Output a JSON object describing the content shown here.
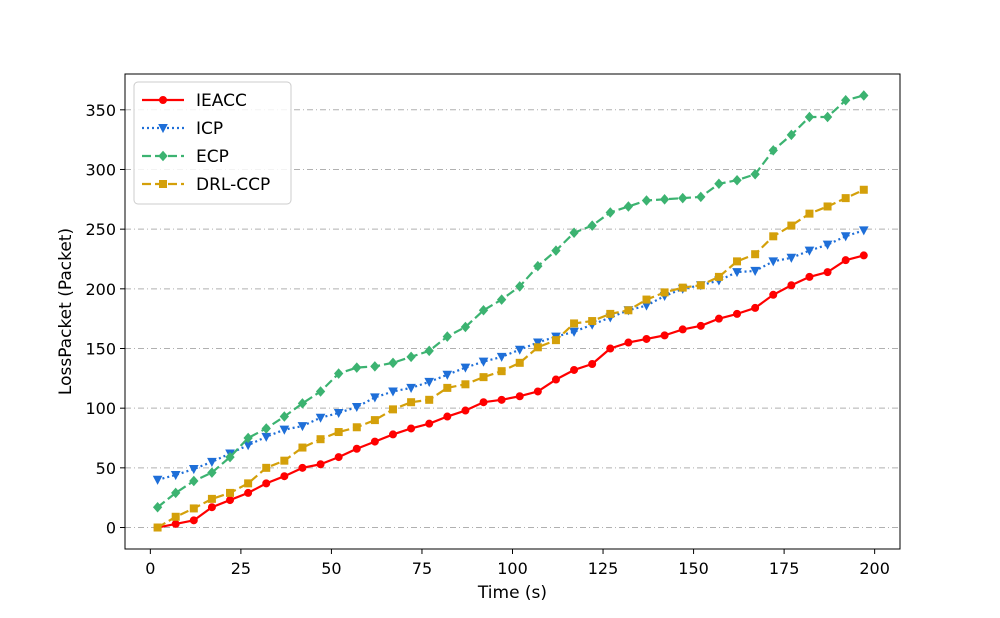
{
  "chart_data": {
    "type": "line",
    "xlabel": "Time (s)",
    "ylabel": "LossPacket (Packet)",
    "xlim": [
      -7,
      207
    ],
    "ylim": [
      -18,
      380
    ],
    "xticks": [
      0,
      25,
      50,
      75,
      100,
      125,
      150,
      175,
      200
    ],
    "yticks": [
      0,
      50,
      100,
      150,
      200,
      250,
      300,
      350
    ],
    "grid": "horizontal dash-dot",
    "legend_position": "upper-left",
    "x": [
      2,
      7,
      12,
      17,
      22,
      27,
      32,
      37,
      42,
      47,
      52,
      57,
      62,
      67,
      72,
      77,
      82,
      87,
      92,
      97,
      102,
      107,
      112,
      117,
      122,
      127,
      132,
      137,
      142,
      147,
      152,
      157,
      162,
      167,
      172,
      177,
      182,
      187,
      192,
      197
    ],
    "series": [
      {
        "name": "IEACC",
        "color": "#ff0000",
        "line_style": "solid",
        "marker": "circle",
        "values": [
          0,
          3,
          6,
          17,
          23,
          29,
          37,
          43,
          50,
          53,
          59,
          66,
          72,
          78,
          83,
          87,
          93,
          98,
          105,
          107,
          110,
          114,
          124,
          132,
          137,
          150,
          155,
          158,
          161,
          166,
          169,
          175,
          179,
          184,
          195,
          203,
          210,
          214,
          224,
          228
        ]
      },
      {
        "name": "ICP",
        "color": "#1f6fd8",
        "line_style": "dotted",
        "marker": "triangle-down",
        "values": [
          40,
          44,
          49,
          55,
          62,
          69,
          76,
          82,
          85,
          92,
          96,
          101,
          109,
          114,
          117,
          122,
          128,
          134,
          139,
          143,
          149,
          155,
          160,
          164,
          170,
          176,
          182,
          186,
          194,
          200,
          203,
          207,
          214,
          215,
          223,
          226,
          232,
          237,
          244,
          249
        ]
      },
      {
        "name": "ECP",
        "color": "#3cb371",
        "line_style": "dashed",
        "marker": "diamond",
        "values": [
          17,
          29,
          39,
          46,
          59,
          75,
          83,
          93,
          104,
          114,
          129,
          134,
          135,
          138,
          143,
          148,
          160,
          168,
          182,
          191,
          202,
          219,
          232,
          247,
          253,
          264,
          269,
          274,
          275,
          276,
          277,
          288,
          291,
          296,
          316,
          329,
          344,
          344,
          358,
          362
        ]
      },
      {
        "name": "DRL-CCP",
        "color": "#d4a00a",
        "line_style": "dashed",
        "marker": "square",
        "values": [
          0,
          9,
          16,
          24,
          29,
          37,
          50,
          56,
          67,
          74,
          80,
          84,
          90,
          99,
          105,
          107,
          117,
          120,
          126,
          131,
          138,
          151,
          157,
          171,
          173,
          179,
          182,
          191,
          197,
          201,
          203,
          210,
          223,
          229,
          244,
          253,
          263,
          269,
          276,
          283
        ]
      }
    ]
  }
}
